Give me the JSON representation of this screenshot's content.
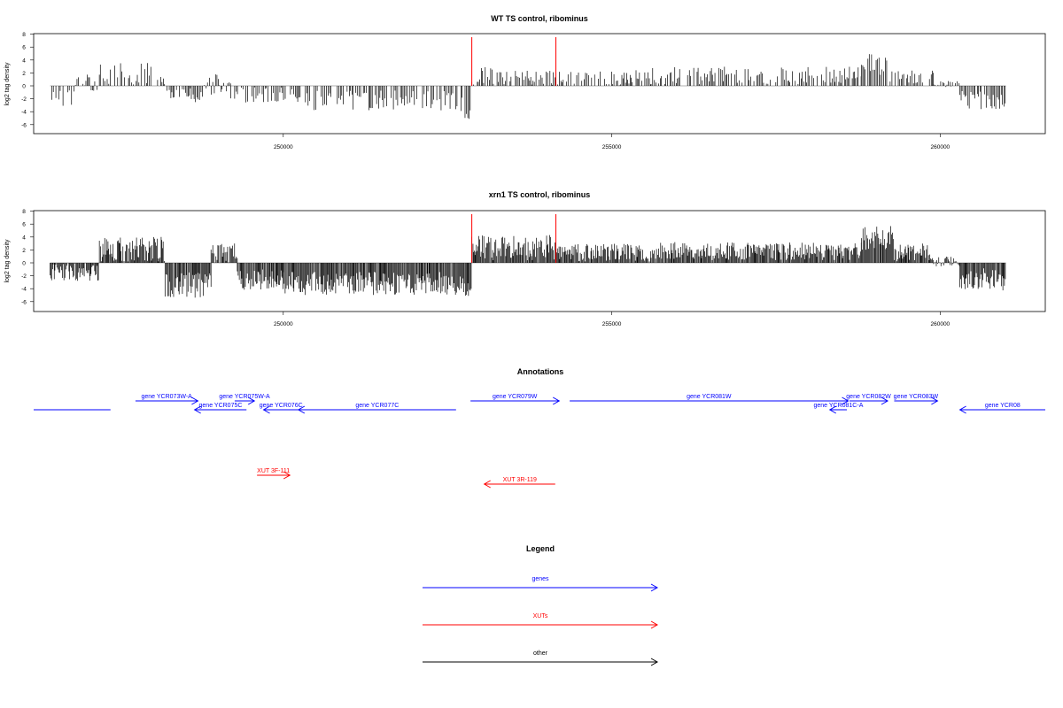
{
  "chart_data": [
    {
      "type": "bar",
      "title": "WT TS control, ribominus",
      "xlabel": "",
      "ylabel": "log2 tag density",
      "xlim": [
        246200,
        261600
      ],
      "ylim": [
        -8,
        8
      ],
      "y_ticks": [
        8,
        6,
        4,
        2,
        0,
        -2,
        -4,
        -6
      ],
      "x_ticks": [
        250000,
        255000,
        260000
      ],
      "grid": false,
      "markers": [
        {
          "x": 252870,
          "color": "#ff0000"
        },
        {
          "x": 254150,
          "color": "#ff0000"
        }
      ],
      "segments": [
        {
          "from": 246450,
          "to": 246800,
          "mean": -1.5,
          "amp": 1.6
        },
        {
          "from": 246800,
          "to": 247200,
          "mean": 0.4,
          "amp": 1.4
        },
        {
          "from": 247200,
          "to": 248200,
          "mean": 1.4,
          "amp": 2.2
        },
        {
          "from": 248200,
          "to": 248600,
          "mean": -1.2,
          "amp": 0.8
        },
        {
          "from": 248600,
          "to": 248800,
          "mean": -1.8,
          "amp": 0.9
        },
        {
          "from": 248800,
          "to": 249200,
          "mean": 0.2,
          "amp": 1.6
        },
        {
          "from": 249200,
          "to": 250300,
          "mean": -1.4,
          "amp": 1.2
        },
        {
          "from": 250300,
          "to": 252600,
          "mean": -2.2,
          "amp": 1.6
        },
        {
          "from": 252600,
          "to": 252870,
          "mean": -3.4,
          "amp": 1.8
        },
        {
          "from": 252870,
          "to": 253300,
          "mean": 1.4,
          "amp": 1.6
        },
        {
          "from": 253300,
          "to": 254150,
          "mean": 1.2,
          "amp": 1.6
        },
        {
          "from": 254150,
          "to": 255600,
          "mean": 1.2,
          "amp": 1.3
        },
        {
          "from": 255600,
          "to": 258800,
          "mean": 1.6,
          "amp": 1.4
        },
        {
          "from": 258800,
          "to": 259200,
          "mean": 3.2,
          "amp": 1.8
        },
        {
          "from": 259200,
          "to": 259900,
          "mean": 1.2,
          "amp": 1.2
        },
        {
          "from": 259900,
          "to": 260300,
          "mean": 0.3,
          "amp": 0.5
        },
        {
          "from": 260300,
          "to": 261000,
          "mean": -2.2,
          "amp": 1.4
        }
      ]
    },
    {
      "type": "bar",
      "title": "xrn1 TS control, ribominus",
      "xlabel": "",
      "ylabel": "log2 tag density",
      "xlim": [
        246200,
        261600
      ],
      "ylim": [
        -8,
        8
      ],
      "y_ticks": [
        8,
        6,
        4,
        2,
        0,
        -2,
        -4,
        -6
      ],
      "x_ticks": [
        250000,
        255000,
        260000
      ],
      "grid": false,
      "markers": [
        {
          "x": 252870,
          "color": "#ff0000"
        },
        {
          "x": 254150,
          "color": "#ff0000"
        }
      ],
      "segments": [
        {
          "from": 246450,
          "to": 247200,
          "mean": -1.2,
          "amp": 1.6
        },
        {
          "from": 247200,
          "to": 248200,
          "mean": 2.0,
          "amp": 2.0
        },
        {
          "from": 248200,
          "to": 248900,
          "mean": -3.4,
          "amp": 2.0
        },
        {
          "from": 248900,
          "to": 249300,
          "mean": 1.4,
          "amp": 1.6
        },
        {
          "from": 249300,
          "to": 250000,
          "mean": -2.6,
          "amp": 1.6
        },
        {
          "from": 250000,
          "to": 252600,
          "mean": -3.2,
          "amp": 1.8
        },
        {
          "from": 252600,
          "to": 252870,
          "mean": -3.6,
          "amp": 1.8
        },
        {
          "from": 252870,
          "to": 254150,
          "mean": 2.4,
          "amp": 2.0
        },
        {
          "from": 254150,
          "to": 255600,
          "mean": 1.6,
          "amp": 1.4
        },
        {
          "from": 255600,
          "to": 258800,
          "mean": 1.8,
          "amp": 1.4
        },
        {
          "from": 258800,
          "to": 259300,
          "mean": 3.8,
          "amp": 2.0
        },
        {
          "from": 259300,
          "to": 259900,
          "mean": 1.6,
          "amp": 1.4
        },
        {
          "from": 259900,
          "to": 260300,
          "mean": 0.2,
          "amp": 0.8
        },
        {
          "from": 260300,
          "to": 261000,
          "mean": -2.6,
          "amp": 1.8
        }
      ]
    }
  ],
  "annotations": {
    "title": "Annotations",
    "xlim": [
      246200,
      261600
    ],
    "features": [
      {
        "label": "",
        "start": 246200,
        "end": 247370,
        "strand": "none",
        "row": "low",
        "type": "gene"
      },
      {
        "label": "gene YCR073W-A",
        "start": 247750,
        "end": 248700,
        "strand": "+",
        "row": "high",
        "type": "gene"
      },
      {
        "label": "gene YCR075C",
        "start": 248650,
        "end": 249440,
        "strand": "-",
        "row": "low",
        "type": "gene"
      },
      {
        "label": "gene YCR075W-A",
        "start": 249260,
        "end": 249560,
        "strand": "+",
        "row": "high",
        "type": "gene"
      },
      {
        "label": "gene YCR076C",
        "start": 249700,
        "end": 250230,
        "strand": "-",
        "row": "low",
        "type": "gene"
      },
      {
        "label": "gene YCR077C",
        "start": 250230,
        "end": 252630,
        "strand": "-",
        "row": "low",
        "type": "gene"
      },
      {
        "label": "gene YCR079W",
        "start": 252850,
        "end": 254200,
        "strand": "+",
        "row": "high",
        "type": "gene"
      },
      {
        "label": "gene YCR081W",
        "start": 254360,
        "end": 258600,
        "strand": "+",
        "row": "high",
        "type": "gene"
      },
      {
        "label": "gene YCR081C-A",
        "start": 258320,
        "end": 258580,
        "strand": "-",
        "row": "low",
        "type": "gene"
      },
      {
        "label": "gene YCR082W",
        "start": 258620,
        "end": 259200,
        "strand": "+",
        "row": "high",
        "type": "gene"
      },
      {
        "label": "gene YCR083W",
        "start": 259300,
        "end": 259960,
        "strand": "+",
        "row": "high",
        "type": "gene"
      },
      {
        "label": "gene YCR08",
        "start": 260300,
        "end": 261600,
        "strand": "-",
        "row": "low",
        "type": "gene"
      },
      {
        "label": "XUT 3F-111",
        "start": 249600,
        "end": 250100,
        "strand": "+",
        "row": "xut-high",
        "type": "xut"
      },
      {
        "label": "XUT 3R-119",
        "start": 253060,
        "end": 254140,
        "strand": "-",
        "row": "xut-low",
        "type": "xut"
      }
    ]
  },
  "legend": {
    "title": "Legend",
    "items": [
      {
        "label": "genes",
        "color": "#0000ff"
      },
      {
        "label": "XUTs",
        "color": "#ff0000"
      },
      {
        "label": "other",
        "color": "#000000"
      }
    ]
  },
  "colors": {
    "gene": "#0000ff",
    "xut": "#ff0000",
    "other": "#000000",
    "bars": "#000000",
    "baseline": "#999999"
  }
}
